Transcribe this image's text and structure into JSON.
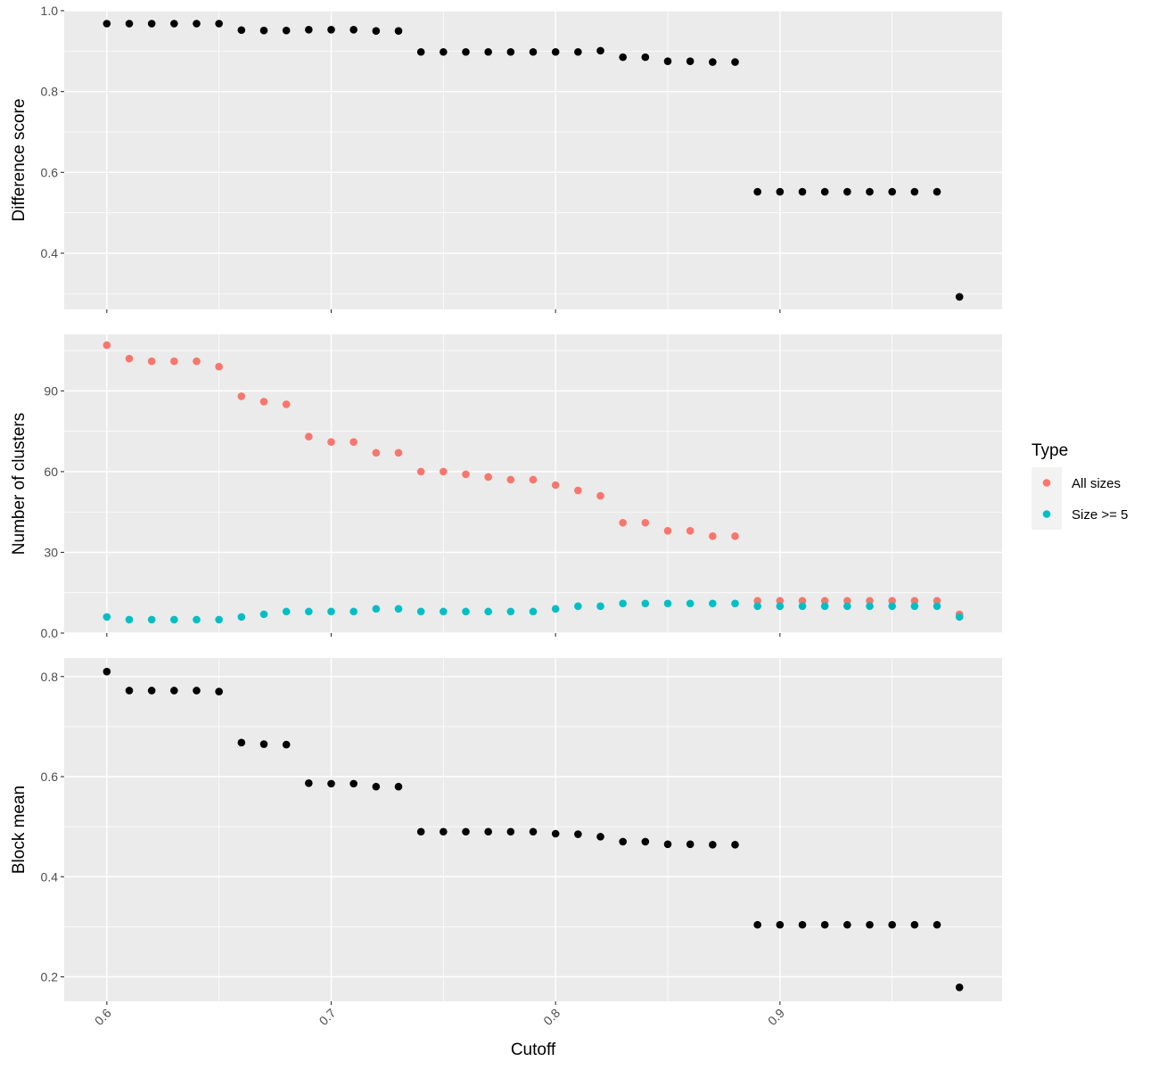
{
  "chart_data": {
    "type": "scatter",
    "xlabel": "Cutoff",
    "x_ticks": [
      0.6,
      0.7,
      0.8,
      0.9
    ],
    "xlim": [
      0.581,
      0.999
    ],
    "grid": true,
    "legend": {
      "title": "Type",
      "position": "right",
      "entries": [
        {
          "label": "All sizes",
          "color": "#F8766D"
        },
        {
          "label": "Size >= 5",
          "color": "#00BFC4"
        }
      ]
    },
    "panels": [
      {
        "ylabel": "Difference score",
        "ylim": [
          0.261,
          1.0
        ],
        "y_ticks": [
          0.4,
          0.6,
          0.8,
          1.0
        ],
        "series": [
          {
            "color": "#000000",
            "x": [
              0.6,
              0.61,
              0.62,
              0.63,
              0.64,
              0.65,
              0.66,
              0.67,
              0.68,
              0.69,
              0.7,
              0.71,
              0.72,
              0.73,
              0.74,
              0.75,
              0.76,
              0.77,
              0.78,
              0.79,
              0.8,
              0.81,
              0.82,
              0.83,
              0.84,
              0.85,
              0.86,
              0.87,
              0.88,
              0.89,
              0.9,
              0.91,
              0.92,
              0.93,
              0.94,
              0.95,
              0.96,
              0.97,
              0.98
            ],
            "y": [
              0.968,
              0.968,
              0.968,
              0.968,
              0.968,
              0.968,
              0.952,
              0.951,
              0.951,
              0.953,
              0.953,
              0.953,
              0.95,
              0.95,
              0.898,
              0.898,
              0.898,
              0.898,
              0.898,
              0.898,
              0.898,
              0.898,
              0.901,
              0.885,
              0.885,
              0.875,
              0.875,
              0.873,
              0.873,
              0.552,
              0.552,
              0.552,
              0.552,
              0.552,
              0.552,
              0.552,
              0.552,
              0.552,
              0.292
            ]
          }
        ]
      },
      {
        "ylabel": "Number of clusters",
        "ylim": [
          0,
          111
        ],
        "y_ticks": [
          0,
          30,
          60,
          90
        ],
        "series": [
          {
            "name": "All sizes",
            "color": "#F8766D",
            "x": [
              0.6,
              0.61,
              0.62,
              0.63,
              0.64,
              0.65,
              0.66,
              0.67,
              0.68,
              0.69,
              0.7,
              0.71,
              0.72,
              0.73,
              0.74,
              0.75,
              0.76,
              0.77,
              0.78,
              0.79,
              0.8,
              0.81,
              0.82,
              0.83,
              0.84,
              0.85,
              0.86,
              0.87,
              0.88,
              0.89,
              0.9,
              0.91,
              0.92,
              0.93,
              0.94,
              0.95,
              0.96,
              0.97,
              0.98
            ],
            "y": [
              107,
              102,
              101,
              101,
              101,
              99,
              88,
              86,
              85,
              73,
              71,
              71,
              67,
              67,
              60,
              60,
              59,
              58,
              57,
              57,
              55,
              53,
              51,
              41,
              41,
              38,
              38,
              36,
              36,
              12,
              12,
              12,
              12,
              12,
              12,
              12,
              12,
              12,
              7
            ]
          },
          {
            "name": "Size >= 5",
            "color": "#00BFC4",
            "x": [
              0.6,
              0.61,
              0.62,
              0.63,
              0.64,
              0.65,
              0.66,
              0.67,
              0.68,
              0.69,
              0.7,
              0.71,
              0.72,
              0.73,
              0.74,
              0.75,
              0.76,
              0.77,
              0.78,
              0.79,
              0.8,
              0.81,
              0.82,
              0.83,
              0.84,
              0.85,
              0.86,
              0.87,
              0.88,
              0.89,
              0.9,
              0.91,
              0.92,
              0.93,
              0.94,
              0.95,
              0.96,
              0.97,
              0.98
            ],
            "y": [
              6,
              5,
              5,
              5,
              5,
              5,
              6,
              7,
              8,
              8,
              8,
              8,
              9,
              9,
              8,
              8,
              8,
              8,
              8,
              8,
              9,
              10,
              10,
              11,
              11,
              11,
              11,
              11,
              11,
              10,
              10,
              10,
              10,
              10,
              10,
              10,
              10,
              10,
              6
            ]
          }
        ]
      },
      {
        "ylabel": "Block mean",
        "ylim": [
          0.151,
          0.837
        ],
        "y_ticks": [
          0.2,
          0.4,
          0.6,
          0.8
        ],
        "series": [
          {
            "color": "#000000",
            "x": [
              0.6,
              0.61,
              0.62,
              0.63,
              0.64,
              0.65,
              0.66,
              0.67,
              0.68,
              0.69,
              0.7,
              0.71,
              0.72,
              0.73,
              0.74,
              0.75,
              0.76,
              0.77,
              0.78,
              0.79,
              0.8,
              0.81,
              0.82,
              0.83,
              0.84,
              0.85,
              0.86,
              0.87,
              0.88,
              0.89,
              0.9,
              0.91,
              0.92,
              0.93,
              0.94,
              0.95,
              0.96,
              0.97,
              0.98
            ],
            "y": [
              0.81,
              0.772,
              0.772,
              0.772,
              0.772,
              0.77,
              0.668,
              0.665,
              0.664,
              0.587,
              0.586,
              0.586,
              0.58,
              0.58,
              0.49,
              0.49,
              0.49,
              0.49,
              0.49,
              0.49,
              0.486,
              0.485,
              0.48,
              0.47,
              0.47,
              0.465,
              0.465,
              0.464,
              0.464,
              0.304,
              0.304,
              0.304,
              0.304,
              0.304,
              0.304,
              0.304,
              0.304,
              0.304,
              0.179
            ]
          }
        ]
      }
    ]
  }
}
